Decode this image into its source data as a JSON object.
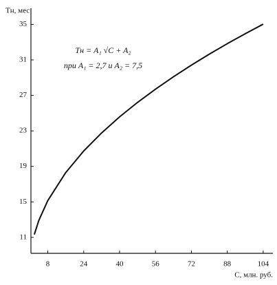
{
  "chart_data": {
    "type": "line",
    "y_label": "Tн, мес",
    "x_label": "C, млн. руб.",
    "annotations": [
      "Tн = A₁ √C + A₂",
      "при A₁ = 2,7 и A₂ = 7,5"
    ],
    "x": [
      2,
      4,
      8,
      16,
      24,
      32,
      40,
      48,
      56,
      64,
      72,
      80,
      88,
      96,
      104
    ],
    "series": [
      {
        "name": "Tн",
        "color": "#111111",
        "values": [
          11.32,
          12.9,
          15.14,
          18.3,
          20.73,
          22.77,
          24.58,
          26.21,
          27.7,
          29.1,
          30.41,
          31.65,
          32.83,
          33.95,
          35.03
        ]
      }
    ],
    "xlim": [
      0.5,
      107.7
    ],
    "ylim": [
      9.2,
      36.2
    ],
    "xticks": [
      8,
      24,
      40,
      56,
      72,
      88,
      104
    ],
    "yticks": [
      11,
      15,
      19,
      23,
      27,
      31,
      35
    ],
    "grid": false
  }
}
